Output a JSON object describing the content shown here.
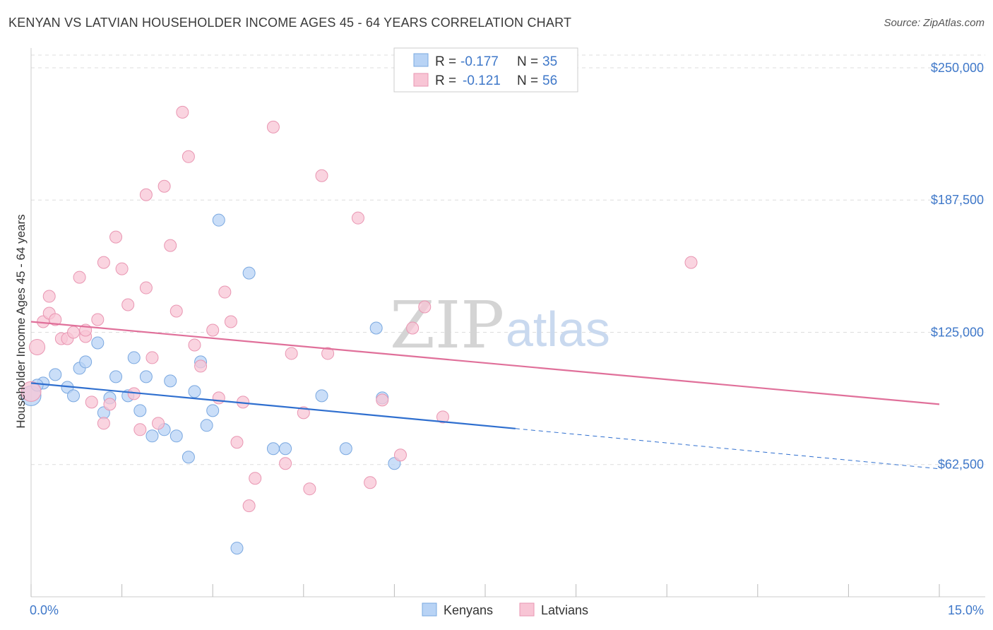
{
  "title": "KENYAN VS LATVIAN HOUSEHOLDER INCOME AGES 45 - 64 YEARS CORRELATION CHART",
  "source": "Source: ZipAtlas.com",
  "watermark": {
    "zip": "ZIP",
    "atlas": "atlas"
  },
  "colors": {
    "kenyan_fill": "#b8d3f5",
    "kenyan_stroke": "#7aa8e0",
    "kenyan_line": "#2f6fcf",
    "latvian_fill": "#f8c5d5",
    "latvian_stroke": "#e996b2",
    "latvian_line": "#e0709a",
    "tick_label": "#3f78c9",
    "grid": "#dddddd"
  },
  "legend": {
    "rows": [
      {
        "r_label": "R =",
        "r_value": "-0.177",
        "n_label": "N =",
        "n_value": "35",
        "series": "kenyan"
      },
      {
        "r_label": "R =",
        "r_value": "-0.121",
        "n_label": "N =",
        "n_value": "56",
        "series": "latvian"
      }
    ]
  },
  "chart_data": {
    "type": "scatter",
    "title": "KENYAN VS LATVIAN HOUSEHOLDER INCOME AGES 45 - 64 YEARS CORRELATION CHART",
    "xlabel": "",
    "ylabel": "Householder Income Ages 45 - 64 years",
    "xlim": [
      0,
      15
    ],
    "ylim": [
      0,
      262000
    ],
    "x_tick_labels": [
      "0.0%",
      "15.0%"
    ],
    "y_ticks": [
      62500,
      125000,
      187500,
      250000
    ],
    "y_tick_labels": [
      "$62,500",
      "$125,000",
      "$187,500",
      "$250,000"
    ],
    "grid": true,
    "legend_position": "top-center",
    "series": [
      {
        "name": "Kenyans",
        "trend": {
          "x": [
            0,
            8.0
          ],
          "y": [
            101000,
            79500
          ],
          "dashed_to": [
            15.0,
            60500
          ]
        },
        "points": [
          [
            0.0,
            95000
          ],
          [
            0.2,
            101000
          ],
          [
            0.4,
            105000
          ],
          [
            0.6,
            99000
          ],
          [
            0.7,
            95000
          ],
          [
            0.8,
            108000
          ],
          [
            0.9,
            111000
          ],
          [
            1.1,
            120000
          ],
          [
            1.2,
            87000
          ],
          [
            1.3,
            94000
          ],
          [
            1.4,
            104000
          ],
          [
            1.6,
            95000
          ],
          [
            1.7,
            113000
          ],
          [
            1.8,
            88000
          ],
          [
            1.9,
            104000
          ],
          [
            2.0,
            76000
          ],
          [
            2.2,
            79000
          ],
          [
            2.3,
            102000
          ],
          [
            2.4,
            76000
          ],
          [
            2.6,
            66000
          ],
          [
            2.7,
            97000
          ],
          [
            2.8,
            111000
          ],
          [
            2.9,
            81000
          ],
          [
            3.0,
            88000
          ],
          [
            3.1,
            178000
          ],
          [
            3.4,
            23000
          ],
          [
            3.6,
            153000
          ],
          [
            4.0,
            70000
          ],
          [
            4.2,
            70000
          ],
          [
            4.8,
            95000
          ],
          [
            5.2,
            70000
          ],
          [
            5.7,
            127000
          ],
          [
            5.8,
            94000
          ],
          [
            6.0,
            63000
          ],
          [
            0.1,
            100000
          ]
        ]
      },
      {
        "name": "Latvians",
        "trend": {
          "x": [
            0,
            15.0
          ],
          "y": [
            130000,
            91000
          ]
        },
        "points": [
          [
            0.0,
            97000
          ],
          [
            0.1,
            118000
          ],
          [
            0.2,
            130000
          ],
          [
            0.3,
            142000
          ],
          [
            0.3,
            134000
          ],
          [
            0.4,
            131000
          ],
          [
            0.5,
            122000
          ],
          [
            0.6,
            122000
          ],
          [
            0.7,
            125000
          ],
          [
            0.8,
            151000
          ],
          [
            0.9,
            123000
          ],
          [
            0.9,
            126000
          ],
          [
            1.0,
            92000
          ],
          [
            1.1,
            131000
          ],
          [
            1.2,
            158000
          ],
          [
            1.2,
            82000
          ],
          [
            1.3,
            91000
          ],
          [
            1.4,
            170000
          ],
          [
            1.5,
            155000
          ],
          [
            1.6,
            138000
          ],
          [
            1.7,
            96000
          ],
          [
            1.8,
            79000
          ],
          [
            1.9,
            190000
          ],
          [
            1.9,
            146000
          ],
          [
            2.0,
            113000
          ],
          [
            2.1,
            82000
          ],
          [
            2.2,
            194000
          ],
          [
            2.3,
            166000
          ],
          [
            2.4,
            135000
          ],
          [
            2.5,
            229000
          ],
          [
            2.6,
            208000
          ],
          [
            2.7,
            119000
          ],
          [
            2.8,
            109000
          ],
          [
            3.0,
            126000
          ],
          [
            3.1,
            94000
          ],
          [
            3.2,
            144000
          ],
          [
            3.3,
            130000
          ],
          [
            3.4,
            73000
          ],
          [
            3.5,
            92000
          ],
          [
            3.6,
            43000
          ],
          [
            3.7,
            56000
          ],
          [
            4.0,
            222000
          ],
          [
            4.2,
            63000
          ],
          [
            4.3,
            115000
          ],
          [
            4.5,
            87000
          ],
          [
            4.6,
            51000
          ],
          [
            4.8,
            199000
          ],
          [
            4.9,
            115000
          ],
          [
            5.4,
            179000
          ],
          [
            5.6,
            54000
          ],
          [
            5.8,
            93000
          ],
          [
            6.1,
            67000
          ],
          [
            6.3,
            127000
          ],
          [
            6.5,
            137000
          ],
          [
            6.8,
            85000
          ],
          [
            10.9,
            158000
          ]
        ]
      }
    ]
  },
  "bottom_legend": [
    {
      "label": "Kenyans",
      "series": "kenyan"
    },
    {
      "label": "Latvians",
      "series": "latvian"
    }
  ]
}
